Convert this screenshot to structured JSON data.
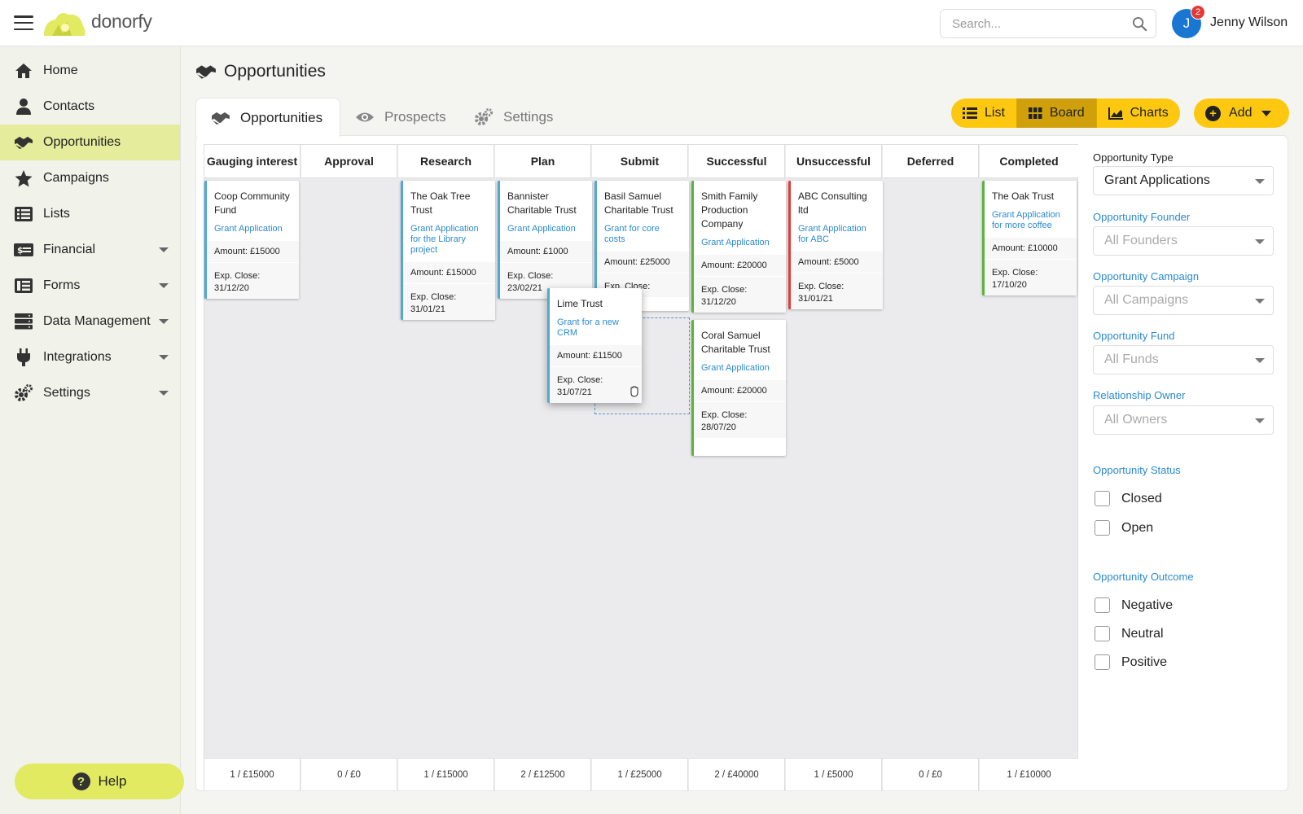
{
  "app": {
    "name": "donorfy",
    "logo_icon": "donorfy-sun-logo"
  },
  "header": {
    "search_placeholder": "Search...",
    "user": {
      "initial": "J",
      "name": "Jenny Wilson",
      "notifications": "2"
    }
  },
  "sidebar": {
    "items": [
      {
        "label": "Home",
        "icon": "home-icon",
        "active": false,
        "has_submenu": false
      },
      {
        "label": "Contacts",
        "icon": "person-icon",
        "active": false,
        "has_submenu": false
      },
      {
        "label": "Opportunities",
        "icon": "handshake-icon",
        "active": true,
        "has_submenu": false
      },
      {
        "label": "Campaigns",
        "icon": "star-icon",
        "active": false,
        "has_submenu": false
      },
      {
        "label": "Lists",
        "icon": "list-icon",
        "active": false,
        "has_submenu": false
      },
      {
        "label": "Financial",
        "icon": "money-icon",
        "active": false,
        "has_submenu": true
      },
      {
        "label": "Forms",
        "icon": "forms-icon",
        "active": false,
        "has_submenu": true
      },
      {
        "label": "Data Management",
        "icon": "database-icon",
        "active": false,
        "has_submenu": true
      },
      {
        "label": "Integrations",
        "icon": "plug-icon",
        "active": false,
        "has_submenu": true
      },
      {
        "label": "Settings",
        "icon": "gears-icon",
        "active": false,
        "has_submenu": true
      }
    ],
    "help_label": "Help"
  },
  "page": {
    "title": "Opportunities",
    "tabs": [
      {
        "label": "Opportunities",
        "icon": "handshake-icon",
        "active": true
      },
      {
        "label": "Prospects",
        "icon": "eye-icon",
        "active": false
      },
      {
        "label": "Settings",
        "icon": "gears-icon",
        "active": false
      }
    ],
    "views": [
      {
        "label": "List",
        "icon": "list-icon",
        "active": false
      },
      {
        "label": "Board",
        "icon": "grid-icon",
        "active": true
      },
      {
        "label": "Charts",
        "icon": "chart-icon",
        "active": false
      }
    ],
    "add_label": "Add"
  },
  "colors": {
    "accent": "#fdc80f",
    "sidebar_active": "#e5ec9b",
    "link": "#2b8ad0",
    "card_blue": "#4fa8d8",
    "card_green": "#5cb33c",
    "card_red": "#e23b3b"
  },
  "board": {
    "columns": [
      {
        "name": "Gauging interest",
        "summary": "1 / £15000"
      },
      {
        "name": "Approval",
        "summary": "0 / £0"
      },
      {
        "name": "Research",
        "summary": "1 / £15000"
      },
      {
        "name": "Plan",
        "summary": "2 / £12500"
      },
      {
        "name": "Submit",
        "summary": "1 / £25000"
      },
      {
        "name": "Successful",
        "summary": "2 / £40000"
      },
      {
        "name": "Unsuccessful",
        "summary": "1 / £5000"
      },
      {
        "name": "Deferred",
        "summary": "0 / £0"
      },
      {
        "name": "Completed",
        "summary": "1 / £10000"
      }
    ],
    "cards": [
      {
        "org": "Coop Community Fund",
        "type": "Grant Application",
        "amount": "Amount: £15000",
        "close_label": "Exp. Close:",
        "close_date": "31/12/20",
        "status": "blue"
      },
      {
        "org": "The Oak Tree Trust",
        "type": "Grant Application for the Library project",
        "amount": "Amount: £15000",
        "close_label": "Exp. Close:",
        "close_date": "31/01/21",
        "status": "blue"
      },
      {
        "org": "Bannister Charitable Trust",
        "type": "Grant Application",
        "amount": "Amount: £1000",
        "close_label": "Exp. Close:",
        "close_date": "23/02/21",
        "status": "blue"
      },
      {
        "org": "Basil Samuel Charitable Trust",
        "type": "Grant for core costs",
        "amount": "Amount: £25000",
        "close_label": "Exp. Close:",
        "close_date": "",
        "status": "blue"
      },
      {
        "org": "Smith Family Production Company",
        "type": "Grant Application",
        "amount": "Amount: £20000",
        "close_label": "Exp. Close:",
        "close_date": "31/12/20",
        "status": "green"
      },
      {
        "org": "Coral Samuel Charitable Trust",
        "type": "Grant Application",
        "amount": "Amount: £20000",
        "close_label": "Exp. Close:",
        "close_date": "28/07/20",
        "status": "green"
      },
      {
        "org": "ABC Consulting ltd",
        "type": "Grant Application for ABC",
        "amount": "Amount: £5000",
        "close_label": "Exp. Close:",
        "close_date": "31/01/21",
        "status": "red"
      },
      {
        "org": "The Oak Trust",
        "type": "Grant Application for more coffee",
        "amount": "Amount: £10000",
        "close_label": "Exp. Close:",
        "close_date": "17/10/20",
        "status": "green"
      },
      {
        "org": "Lime Trust",
        "type": "Grant for a new CRM",
        "amount": "Amount: £11500",
        "close_label": "Exp. Close:",
        "close_date": "31/07/21",
        "status": "blue",
        "dragging": true
      }
    ]
  },
  "filters": {
    "type_label": "Opportunity Type",
    "type_value": "Grant Applications",
    "founder_label": "Opportunity Founder",
    "founder_value": "All Founders",
    "campaign_label": "Opportunity Campaign",
    "campaign_value": "All Campaigns",
    "fund_label": "Opportunity Fund",
    "fund_value": "All Funds",
    "owner_label": "Relationship Owner",
    "owner_value": "All Owners",
    "status_label": "Opportunity Status",
    "status_options": [
      "Closed",
      "Open"
    ],
    "outcome_label": "Opportunity Outcome",
    "outcome_options": [
      "Negative",
      "Neutral",
      "Positive"
    ]
  }
}
